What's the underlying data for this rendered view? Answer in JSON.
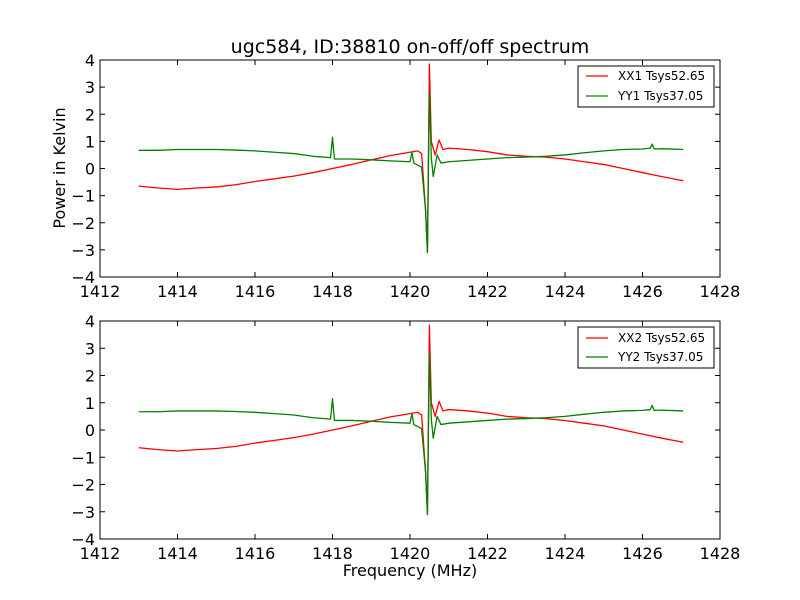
{
  "colors": {
    "red": "#ff0000",
    "green": "#008000",
    "frame": "#000000",
    "background": "#ffffff"
  },
  "chart_data": [
    {
      "type": "line",
      "title": "ugc584, ID:38810 on-off/off spectrum",
      "xlabel": "",
      "ylabel": "Power in Kelvin",
      "xlim": [
        1412,
        1428
      ],
      "ylim": [
        -4,
        4
      ],
      "xticks": [
        "1412",
        "1414",
        "1416",
        "1418",
        "1420",
        "1422",
        "1424",
        "1426",
        "1428"
      ],
      "yticks": [
        "4",
        "3",
        "2",
        "1",
        "0",
        "−1",
        "−2",
        "−3",
        "−4"
      ],
      "legend_position": "top-right",
      "series": [
        {
          "name": "XX1 Tsys52.65",
          "color": "#ff0000",
          "points": [
            [
              1413.0,
              -0.65
            ],
            [
              1413.5,
              -0.72
            ],
            [
              1414.0,
              -0.77
            ],
            [
              1414.5,
              -0.72
            ],
            [
              1415.0,
              -0.68
            ],
            [
              1415.5,
              -0.6
            ],
            [
              1416.0,
              -0.48
            ],
            [
              1416.5,
              -0.38
            ],
            [
              1417.0,
              -0.28
            ],
            [
              1417.5,
              -0.15
            ],
            [
              1418.0,
              0.0
            ],
            [
              1418.5,
              0.15
            ],
            [
              1419.0,
              0.32
            ],
            [
              1419.5,
              0.48
            ],
            [
              1420.0,
              0.6
            ],
            [
              1420.2,
              0.65
            ],
            [
              1420.3,
              0.55
            ],
            [
              1420.4,
              -1.5
            ],
            [
              1420.45,
              -3.05
            ],
            [
              1420.5,
              3.85
            ],
            [
              1420.55,
              1.0
            ],
            [
              1420.65,
              0.5
            ],
            [
              1420.75,
              1.05
            ],
            [
              1420.85,
              0.7
            ],
            [
              1421.0,
              0.75
            ],
            [
              1421.5,
              0.7
            ],
            [
              1422.0,
              0.62
            ],
            [
              1422.5,
              0.5
            ],
            [
              1423.0,
              0.45
            ],
            [
              1423.5,
              0.42
            ],
            [
              1424.0,
              0.35
            ],
            [
              1424.5,
              0.25
            ],
            [
              1425.0,
              0.15
            ],
            [
              1425.5,
              0.0
            ],
            [
              1426.0,
              -0.15
            ],
            [
              1426.5,
              -0.3
            ],
            [
              1427.05,
              -0.45
            ]
          ]
        },
        {
          "name": "YY1 Tsys37.05",
          "color": "#008000",
          "points": [
            [
              1413.0,
              0.67
            ],
            [
              1413.5,
              0.67
            ],
            [
              1414.0,
              0.7
            ],
            [
              1414.5,
              0.7
            ],
            [
              1415.0,
              0.7
            ],
            [
              1415.5,
              0.68
            ],
            [
              1416.0,
              0.65
            ],
            [
              1416.5,
              0.6
            ],
            [
              1417.0,
              0.55
            ],
            [
              1417.5,
              0.45
            ],
            [
              1417.95,
              0.4
            ],
            [
              1418.0,
              1.15
            ],
            [
              1418.05,
              0.35
            ],
            [
              1418.5,
              0.35
            ],
            [
              1419.0,
              0.32
            ],
            [
              1419.5,
              0.28
            ],
            [
              1420.0,
              0.25
            ],
            [
              1420.05,
              0.6
            ],
            [
              1420.1,
              0.2
            ],
            [
              1420.3,
              0.05
            ],
            [
              1420.4,
              -1.5
            ],
            [
              1420.45,
              -3.1
            ],
            [
              1420.5,
              2.8
            ],
            [
              1420.55,
              0.4
            ],
            [
              1420.6,
              -0.3
            ],
            [
              1420.7,
              0.5
            ],
            [
              1420.8,
              0.2
            ],
            [
              1421.0,
              0.25
            ],
            [
              1421.5,
              0.3
            ],
            [
              1422.0,
              0.35
            ],
            [
              1422.5,
              0.4
            ],
            [
              1423.0,
              0.42
            ],
            [
              1423.5,
              0.45
            ],
            [
              1424.0,
              0.5
            ],
            [
              1424.5,
              0.58
            ],
            [
              1425.0,
              0.65
            ],
            [
              1425.5,
              0.7
            ],
            [
              1426.0,
              0.72
            ],
            [
              1426.2,
              0.75
            ],
            [
              1426.25,
              0.9
            ],
            [
              1426.3,
              0.72
            ],
            [
              1426.5,
              0.73
            ],
            [
              1427.05,
              0.7
            ]
          ]
        }
      ]
    },
    {
      "type": "line",
      "title": "",
      "xlabel": "Frequency (MHz)",
      "ylabel": "",
      "xlim": [
        1412,
        1428
      ],
      "ylim": [
        -4,
        4
      ],
      "xticks": [
        "1412",
        "1414",
        "1416",
        "1418",
        "1420",
        "1422",
        "1424",
        "1426",
        "1428"
      ],
      "yticks": [
        "4",
        "3",
        "2",
        "1",
        "0",
        "−1",
        "−2",
        "−3",
        "−4"
      ],
      "legend_position": "top-right",
      "series": [
        {
          "name": "XX2 Tsys52.65",
          "color": "#ff0000",
          "points": [
            [
              1413.0,
              -0.65
            ],
            [
              1413.5,
              -0.72
            ],
            [
              1414.0,
              -0.77
            ],
            [
              1414.5,
              -0.72
            ],
            [
              1415.0,
              -0.68
            ],
            [
              1415.5,
              -0.6
            ],
            [
              1416.0,
              -0.48
            ],
            [
              1416.5,
              -0.38
            ],
            [
              1417.0,
              -0.28
            ],
            [
              1417.5,
              -0.15
            ],
            [
              1418.0,
              0.0
            ],
            [
              1418.5,
              0.15
            ],
            [
              1419.0,
              0.32
            ],
            [
              1419.5,
              0.48
            ],
            [
              1420.0,
              0.6
            ],
            [
              1420.2,
              0.65
            ],
            [
              1420.3,
              0.55
            ],
            [
              1420.4,
              -1.5
            ],
            [
              1420.45,
              -3.05
            ],
            [
              1420.5,
              3.85
            ],
            [
              1420.55,
              1.0
            ],
            [
              1420.65,
              0.5
            ],
            [
              1420.75,
              1.05
            ],
            [
              1420.85,
              0.7
            ],
            [
              1421.0,
              0.75
            ],
            [
              1421.5,
              0.7
            ],
            [
              1422.0,
              0.62
            ],
            [
              1422.5,
              0.5
            ],
            [
              1423.0,
              0.45
            ],
            [
              1423.5,
              0.42
            ],
            [
              1424.0,
              0.35
            ],
            [
              1424.5,
              0.25
            ],
            [
              1425.0,
              0.15
            ],
            [
              1425.5,
              0.0
            ],
            [
              1426.0,
              -0.15
            ],
            [
              1426.5,
              -0.3
            ],
            [
              1427.05,
              -0.45
            ]
          ]
        },
        {
          "name": "YY2 Tsys37.05",
          "color": "#008000",
          "points": [
            [
              1413.0,
              0.67
            ],
            [
              1413.5,
              0.67
            ],
            [
              1414.0,
              0.7
            ],
            [
              1414.5,
              0.7
            ],
            [
              1415.0,
              0.7
            ],
            [
              1415.5,
              0.68
            ],
            [
              1416.0,
              0.65
            ],
            [
              1416.5,
              0.6
            ],
            [
              1417.0,
              0.55
            ],
            [
              1417.5,
              0.45
            ],
            [
              1417.95,
              0.4
            ],
            [
              1418.0,
              1.15
            ],
            [
              1418.05,
              0.35
            ],
            [
              1418.5,
              0.35
            ],
            [
              1419.0,
              0.32
            ],
            [
              1419.5,
              0.28
            ],
            [
              1420.0,
              0.25
            ],
            [
              1420.05,
              0.6
            ],
            [
              1420.1,
              0.2
            ],
            [
              1420.3,
              0.05
            ],
            [
              1420.4,
              -1.5
            ],
            [
              1420.45,
              -3.1
            ],
            [
              1420.5,
              2.8
            ],
            [
              1420.55,
              0.4
            ],
            [
              1420.6,
              -0.3
            ],
            [
              1420.7,
              0.5
            ],
            [
              1420.8,
              0.2
            ],
            [
              1421.0,
              0.25
            ],
            [
              1421.5,
              0.3
            ],
            [
              1422.0,
              0.35
            ],
            [
              1422.5,
              0.4
            ],
            [
              1423.0,
              0.42
            ],
            [
              1423.5,
              0.45
            ],
            [
              1424.0,
              0.5
            ],
            [
              1424.5,
              0.58
            ],
            [
              1425.0,
              0.65
            ],
            [
              1425.5,
              0.7
            ],
            [
              1426.0,
              0.72
            ],
            [
              1426.2,
              0.75
            ],
            [
              1426.25,
              0.9
            ],
            [
              1426.3,
              0.72
            ],
            [
              1426.5,
              0.73
            ],
            [
              1427.05,
              0.7
            ]
          ]
        }
      ]
    }
  ]
}
